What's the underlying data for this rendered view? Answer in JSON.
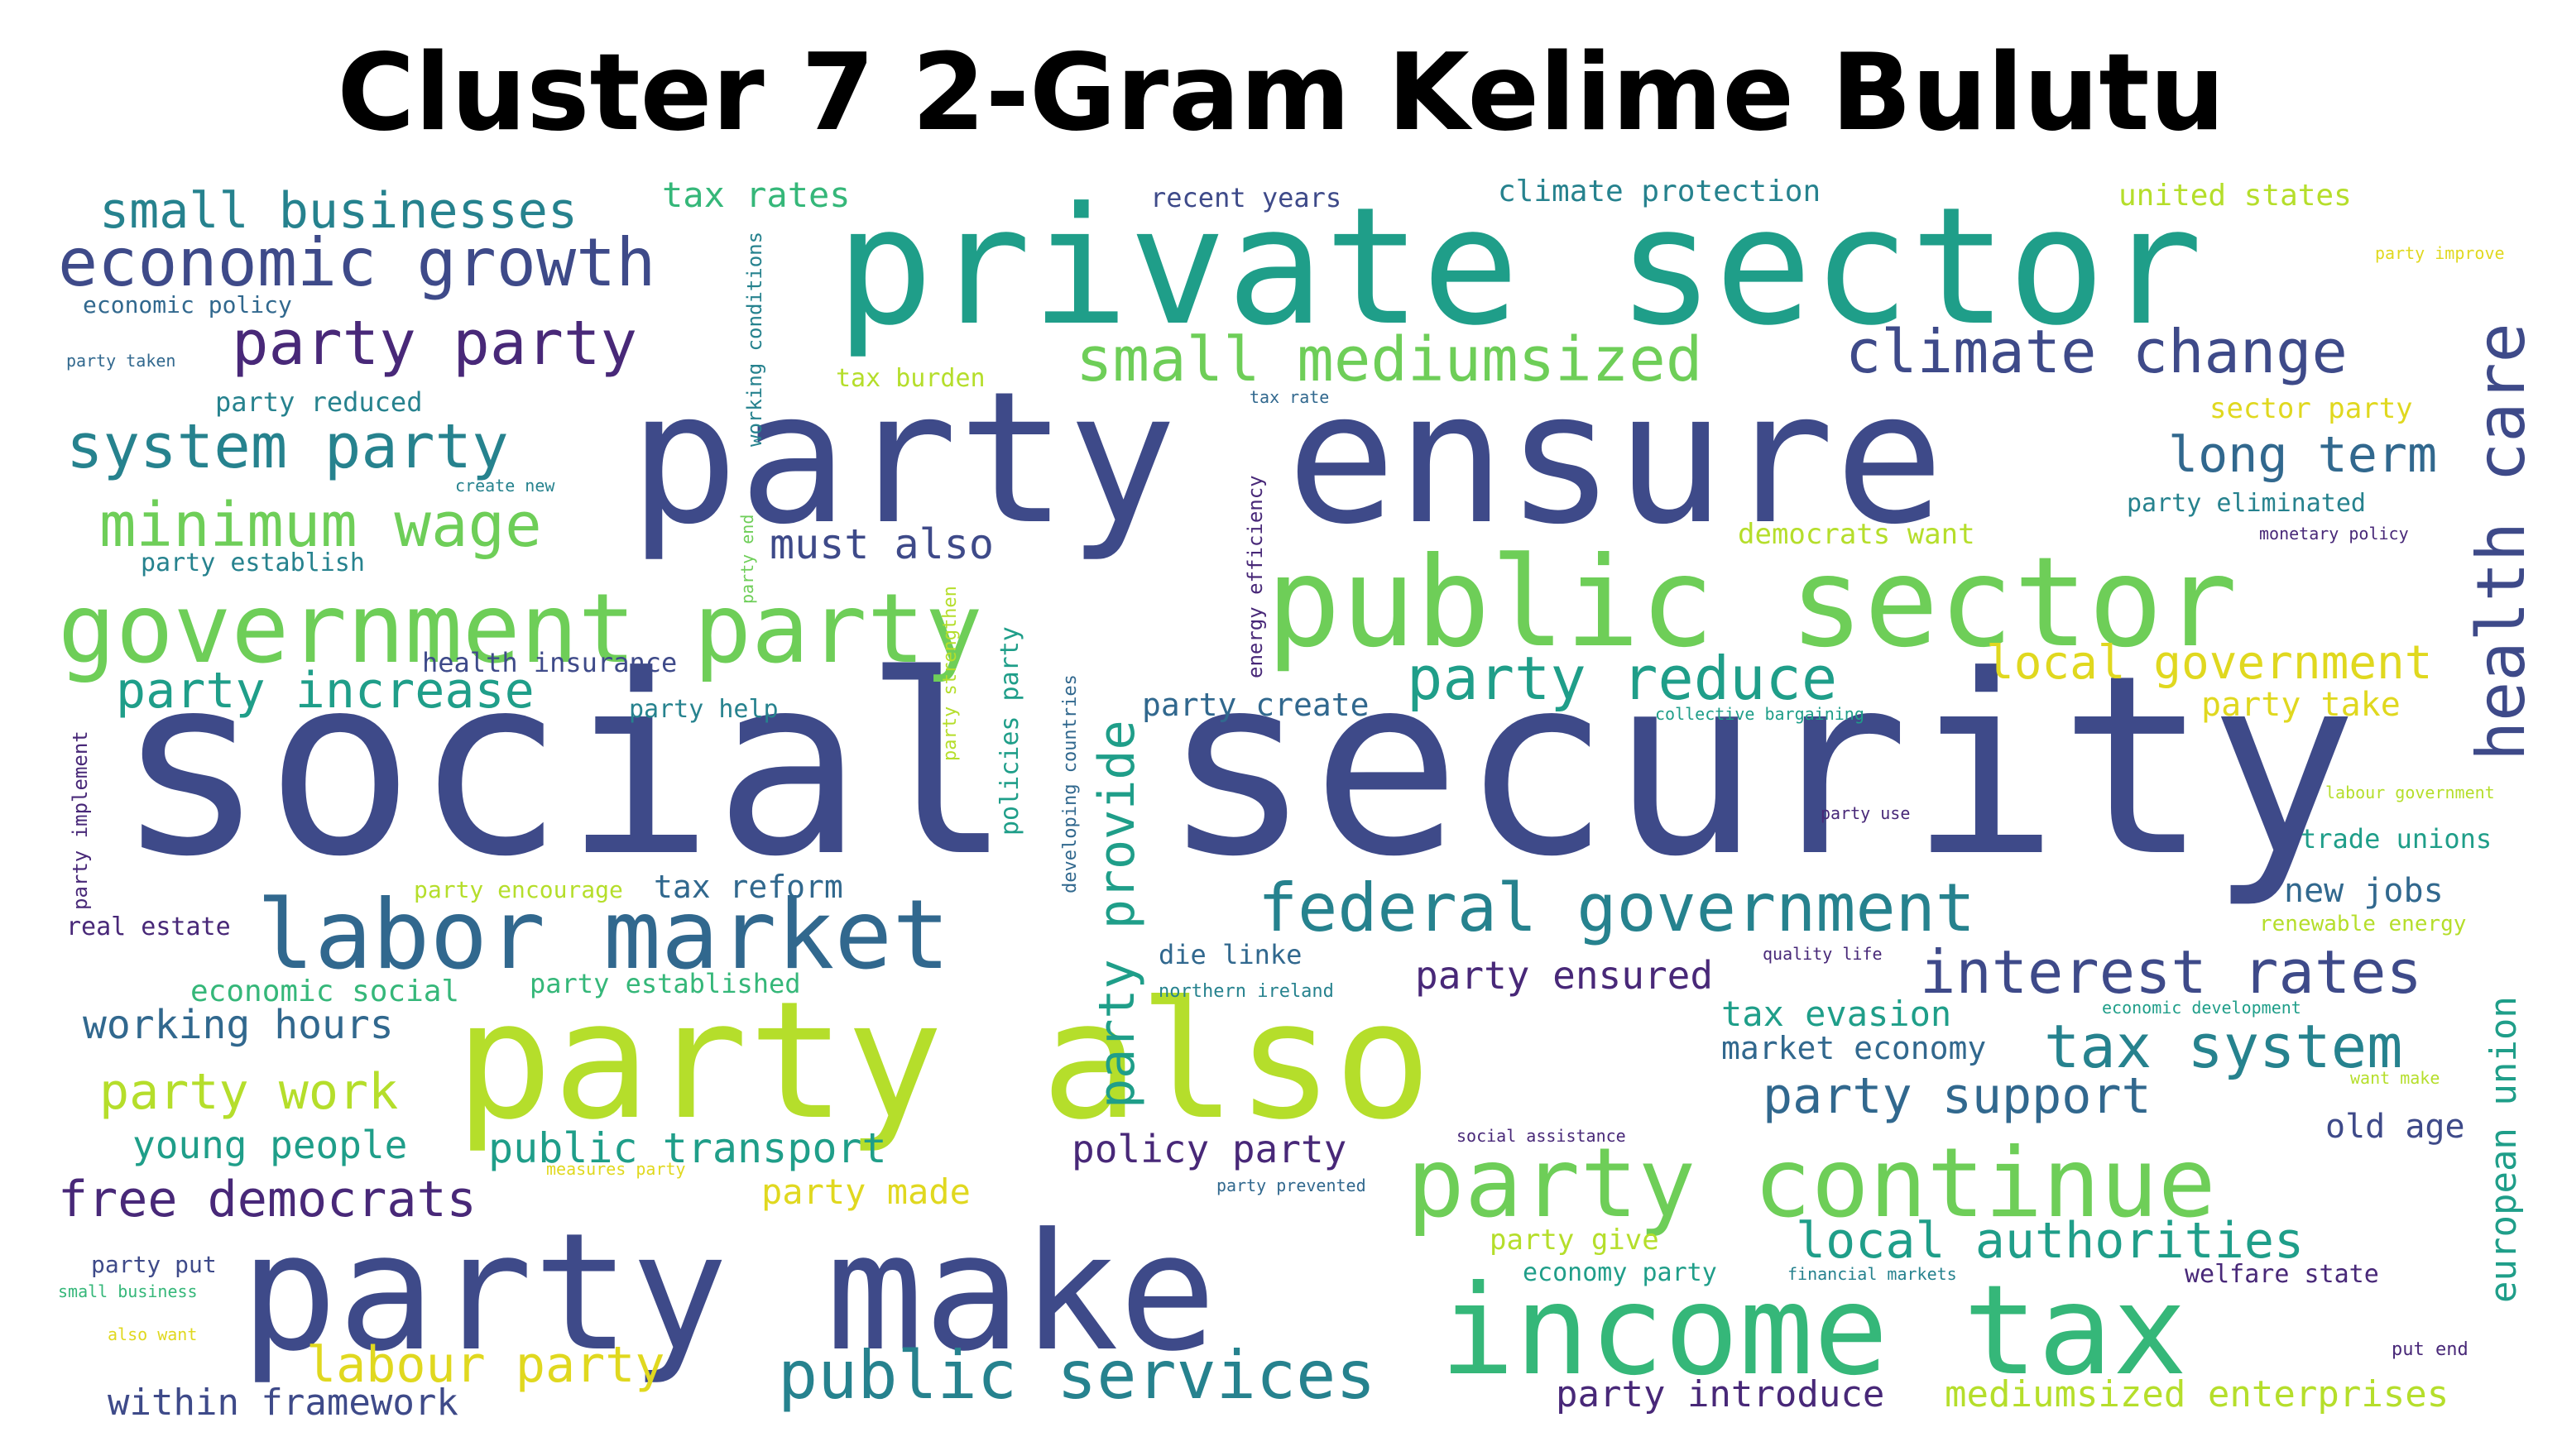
{
  "title": "Cluster 7 2-Gram Kelime Bulutu",
  "palette": {
    "dark_purple": "#482878",
    "indigo": "#3e4a89",
    "blue": "#31688e",
    "teal": "#26828e",
    "green_teal": "#1f9e89",
    "green": "#35b779",
    "light_green": "#6ece58",
    "yellow_green": "#b5de2b",
    "yellow": "#e0d81f"
  },
  "words": [
    {
      "text": "social security",
      "color": "indigo"
    },
    {
      "text": "party ensure",
      "color": "indigo"
    },
    {
      "text": "private sector",
      "color": "green_teal"
    },
    {
      "text": "party also",
      "color": "yellow_green"
    },
    {
      "text": "party make",
      "color": "indigo"
    },
    {
      "text": "public sector",
      "color": "light_green"
    },
    {
      "text": "income tax",
      "color": "green"
    },
    {
      "text": "party continue",
      "color": "light_green"
    },
    {
      "text": "government party",
      "color": "light_green"
    },
    {
      "text": "labor market",
      "color": "blue"
    },
    {
      "text": "federal government",
      "color": "teal"
    },
    {
      "text": "economic growth",
      "color": "indigo"
    },
    {
      "text": "public services",
      "color": "teal"
    },
    {
      "text": "health care",
      "color": "indigo"
    },
    {
      "text": "interest rates",
      "color": "indigo"
    },
    {
      "text": "small mediumsized",
      "color": "light_green"
    },
    {
      "text": "climate change",
      "color": "indigo"
    },
    {
      "text": "party party",
      "color": "dark_purple"
    },
    {
      "text": "system party",
      "color": "teal"
    },
    {
      "text": "minimum wage",
      "color": "light_green"
    },
    {
      "text": "party reduce",
      "color": "green_teal"
    },
    {
      "text": "tax system",
      "color": "teal"
    },
    {
      "text": "small businesses",
      "color": "teal"
    },
    {
      "text": "party provide",
      "color": "green_teal"
    },
    {
      "text": "local authorities",
      "color": "green_teal"
    },
    {
      "text": "party increase",
      "color": "green_teal"
    },
    {
      "text": "party support",
      "color": "blue"
    },
    {
      "text": "long term",
      "color": "blue"
    },
    {
      "text": "local government",
      "color": "yellow"
    },
    {
      "text": "free democrats",
      "color": "dark_purple"
    },
    {
      "text": "labour party",
      "color": "yellow"
    },
    {
      "text": "party work",
      "color": "yellow_green"
    },
    {
      "text": "must also",
      "color": "indigo"
    },
    {
      "text": "european union",
      "color": "green_teal"
    },
    {
      "text": "public transport",
      "color": "green_teal"
    },
    {
      "text": "working hours",
      "color": "blue"
    },
    {
      "text": "young people",
      "color": "green_teal"
    },
    {
      "text": "policy party",
      "color": "dark_purple"
    },
    {
      "text": "party ensured",
      "color": "dark_purple"
    },
    {
      "text": "party introduce",
      "color": "dark_purple"
    },
    {
      "text": "mediumsized enterprises",
      "color": "yellow_green"
    },
    {
      "text": "within framework",
      "color": "indigo"
    },
    {
      "text": "party made",
      "color": "yellow"
    },
    {
      "text": "tax evasion",
      "color": "green_teal"
    },
    {
      "text": "market economy",
      "color": "blue"
    },
    {
      "text": "new jobs",
      "color": "blue"
    },
    {
      "text": "old age",
      "color": "indigo"
    },
    {
      "text": "tax rates",
      "color": "green"
    },
    {
      "text": "party take",
      "color": "yellow"
    },
    {
      "text": "party create",
      "color": "blue"
    },
    {
      "text": "tax reform",
      "color": "blue"
    },
    {
      "text": "die linke",
      "color": "blue"
    },
    {
      "text": "economic social",
      "color": "green"
    },
    {
      "text": "party established",
      "color": "green"
    },
    {
      "text": "party give",
      "color": "yellow_green"
    },
    {
      "text": "recent years",
      "color": "indigo"
    },
    {
      "text": "climate protection",
      "color": "teal"
    },
    {
      "text": "united states",
      "color": "yellow_green"
    },
    {
      "text": "democrats want",
      "color": "yellow_green"
    },
    {
      "text": "party eliminated",
      "color": "teal"
    },
    {
      "text": "trade unions",
      "color": "green_teal"
    },
    {
      "text": "sector party",
      "color": "yellow"
    },
    {
      "text": "health insurance",
      "color": "indigo"
    },
    {
      "text": "party reduced",
      "color": "teal"
    },
    {
      "text": "party establish",
      "color": "teal"
    },
    {
      "text": "party help",
      "color": "teal"
    },
    {
      "text": "real estate",
      "color": "dark_purple"
    },
    {
      "text": "economy party",
      "color": "green_teal"
    },
    {
      "text": "welfare state",
      "color": "dark_purple"
    },
    {
      "text": "party encourage",
      "color": "yellow_green"
    },
    {
      "text": "tax burden",
      "color": "yellow_green"
    },
    {
      "text": "policies party",
      "color": "green_teal"
    },
    {
      "text": "energy efficiency",
      "color": "dark_purple"
    },
    {
      "text": "renewable energy",
      "color": "yellow_green"
    },
    {
      "text": "economic policy",
      "color": "blue"
    },
    {
      "text": "working conditions",
      "color": "teal"
    },
    {
      "text": "party implement",
      "color": "dark_purple"
    },
    {
      "text": "developing countries",
      "color": "blue"
    },
    {
      "text": "party strengthen",
      "color": "yellow_green"
    },
    {
      "text": "party put",
      "color": "indigo"
    },
    {
      "text": "quality life",
      "color": "dark_purple"
    },
    {
      "text": "northern ireland",
      "color": "teal"
    },
    {
      "text": "party taken",
      "color": "blue"
    },
    {
      "text": "create new",
      "color": "teal"
    },
    {
      "text": "party end",
      "color": "light_green"
    },
    {
      "text": "tax rate",
      "color": "blue"
    },
    {
      "text": "collective bargaining",
      "color": "green_teal"
    },
    {
      "text": "party use",
      "color": "dark_purple"
    },
    {
      "text": "monetary policy",
      "color": "dark_purple"
    },
    {
      "text": "party improve",
      "color": "yellow"
    },
    {
      "text": "labour government",
      "color": "yellow_green"
    },
    {
      "text": "economic development",
      "color": "green_teal"
    },
    {
      "text": "want make",
      "color": "yellow_green"
    },
    {
      "text": "social assistance",
      "color": "dark_purple"
    },
    {
      "text": "measures party",
      "color": "yellow"
    },
    {
      "text": "party prevented",
      "color": "blue"
    },
    {
      "text": "financial markets",
      "color": "teal"
    },
    {
      "text": "small business",
      "color": "green"
    },
    {
      "text": "also want",
      "color": "yellow"
    },
    {
      "text": "put end",
      "color": "dark_purple"
    }
  ]
}
